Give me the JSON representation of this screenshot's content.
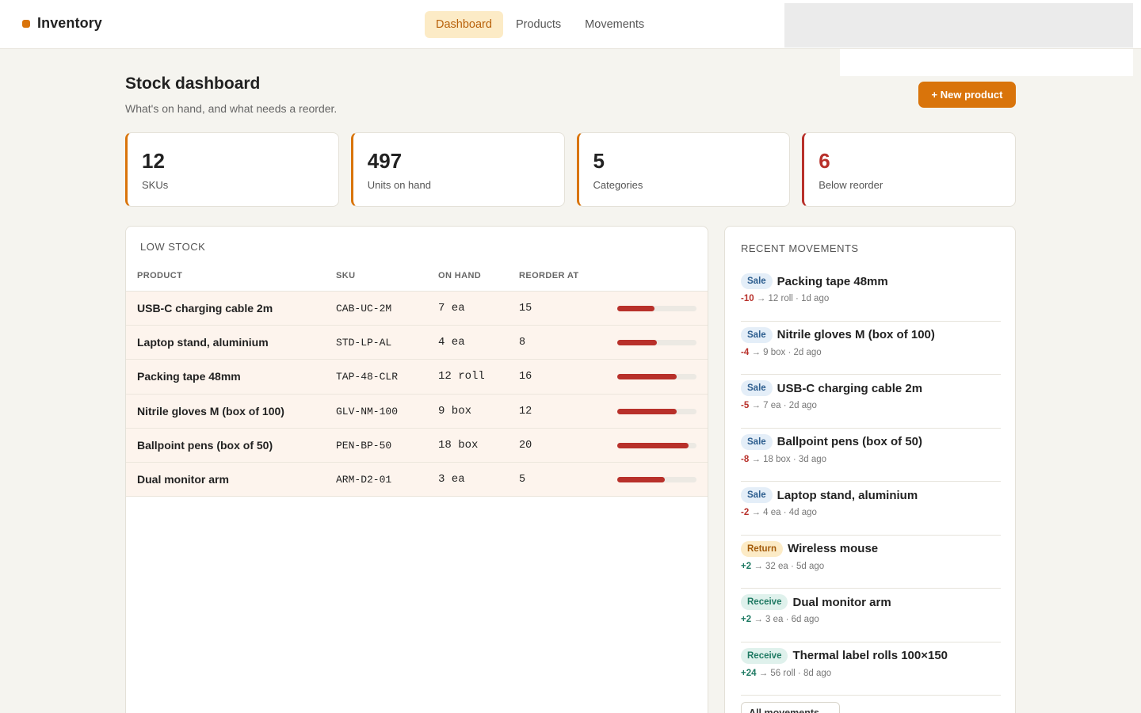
{
  "brand": {
    "name": "Inventory",
    "color": "#d9740b"
  },
  "nav": {
    "tabs": [
      {
        "label": "Dashboard",
        "active": true
      },
      {
        "label": "Products"
      },
      {
        "label": "Movements"
      }
    ]
  },
  "header": {
    "title": "Stock dashboard",
    "subtitle": "What's on hand, and what needs a reorder.",
    "new_product_label": "+ New product"
  },
  "stats": [
    {
      "value": "12",
      "label": "SKUs"
    },
    {
      "value": "497",
      "label": "Units on hand"
    },
    {
      "value": "5",
      "label": "Categories"
    },
    {
      "value": "6",
      "label": "Below reorder",
      "alert": true
    }
  ],
  "low_stock": {
    "title": "LOW STOCK",
    "columns": [
      "PRODUCT",
      "SKU",
      "ON HAND",
      "REORDER AT"
    ],
    "rows": [
      {
        "product": "USB-C charging cable 2m",
        "sku": "CAB-UC-2M",
        "on_hand": "7 ea",
        "reorder_at": "15",
        "level": 0.47
      },
      {
        "product": "Laptop stand, aluminium",
        "sku": "STD-LP-AL",
        "on_hand": "4 ea",
        "reorder_at": "8",
        "level": 0.5
      },
      {
        "product": "Packing tape 48mm",
        "sku": "TAP-48-CLR",
        "on_hand": "12 roll",
        "reorder_at": "16",
        "level": 0.75
      },
      {
        "product": "Nitrile gloves M (box of 100)",
        "sku": "GLV-NM-100",
        "on_hand": "9 box",
        "reorder_at": "12",
        "level": 0.75
      },
      {
        "product": "Ballpoint pens (box of 50)",
        "sku": "PEN-BP-50",
        "on_hand": "18 box",
        "reorder_at": "20",
        "level": 0.9
      },
      {
        "product": "Dual monitor arm",
        "sku": "ARM-D2-01",
        "on_hand": "3 ea",
        "reorder_at": "5",
        "level": 0.6
      }
    ]
  },
  "recent_movements": {
    "title": "RECENT MOVEMENTS",
    "items": [
      {
        "type": "Sale",
        "name": "Packing tape 48mm",
        "delta": "-10",
        "detail": "→ 12 roll · 1d ago"
      },
      {
        "type": "Sale",
        "name": "Nitrile gloves M (box of 100)",
        "delta": "-4",
        "detail": "→ 9 box · 2d ago"
      },
      {
        "type": "Sale",
        "name": "USB-C charging cable 2m",
        "delta": "-5",
        "detail": "→ 7 ea · 2d ago"
      },
      {
        "type": "Sale",
        "name": "Ballpoint pens (box of 50)",
        "delta": "-8",
        "detail": "→ 18 box · 3d ago"
      },
      {
        "type": "Sale",
        "name": "Laptop stand, aluminium",
        "delta": "-2",
        "detail": "→ 4 ea · 4d ago"
      },
      {
        "type": "Return",
        "name": "Wireless mouse",
        "delta": "+2",
        "detail": "→ 32 ea · 5d ago"
      },
      {
        "type": "Receive",
        "name": "Dual monitor arm",
        "delta": "+2",
        "detail": "→ 3 ea · 6d ago"
      },
      {
        "type": "Receive",
        "name": "Thermal label rolls 100×150",
        "delta": "+24",
        "detail": "→ 56 roll · 8d ago"
      }
    ],
    "all_label": "All movements →"
  },
  "colors": {
    "accent": "#d9740b",
    "danger": "#b8302a",
    "positive": "#1f7a63",
    "background": "#f5f4ef"
  }
}
